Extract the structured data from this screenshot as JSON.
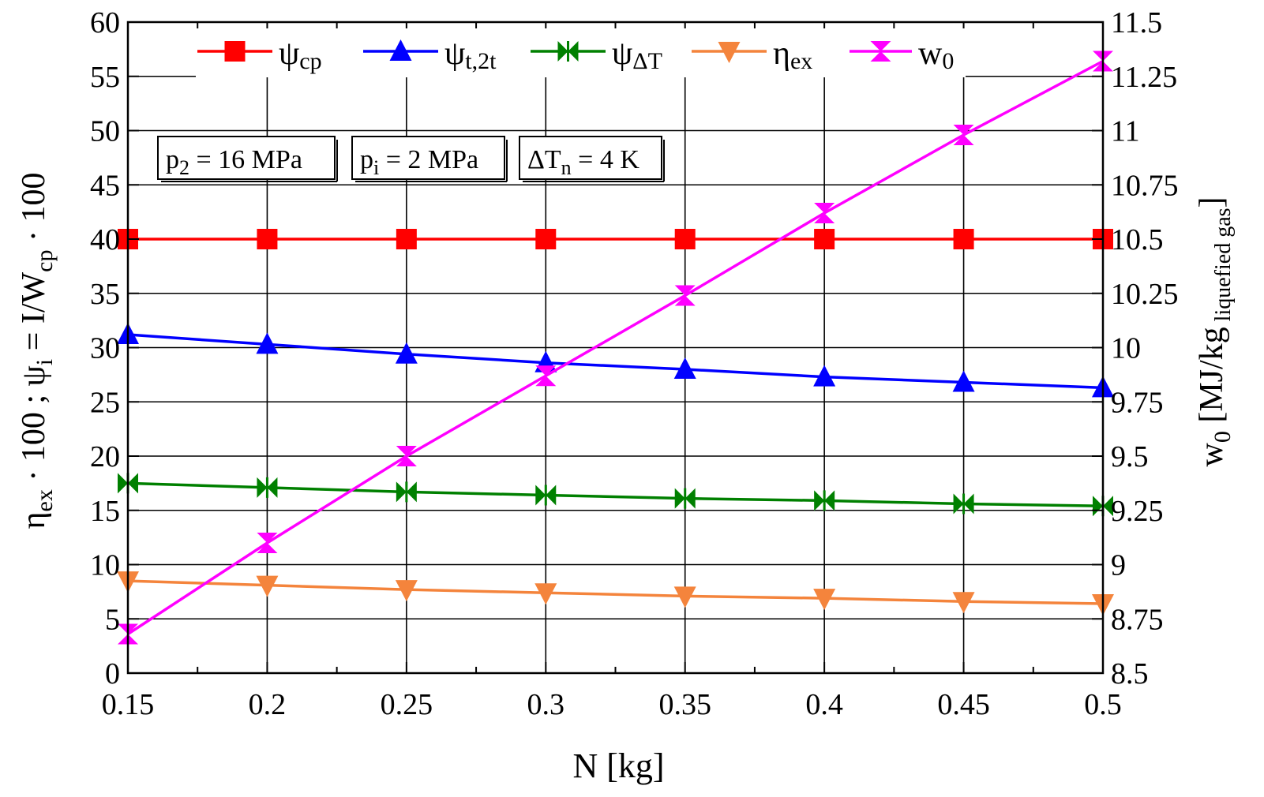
{
  "chart_data": {
    "type": "line",
    "x": [
      0.15,
      0.2,
      0.25,
      0.3,
      0.35,
      0.4,
      0.45,
      0.5
    ],
    "xlim": [
      0.15,
      0.5
    ],
    "ylim_left": [
      0,
      60
    ],
    "ylim_right": [
      8.5,
      11.5
    ],
    "xticks": [
      "0.15",
      "0.2",
      "0.25",
      "0.3",
      "0.35",
      "0.4",
      "0.45",
      "0.5"
    ],
    "yticks_left": [
      "0",
      "5",
      "10",
      "15",
      "20",
      "25",
      "30",
      "35",
      "40",
      "45",
      "50",
      "55",
      "60"
    ],
    "yticks_right": [
      "8.5",
      "8.75",
      "9",
      "9.25",
      "9.5",
      "9.75",
      "10",
      "10.25",
      "10.5",
      "10.75",
      "11",
      "11.25",
      "11.5"
    ],
    "xlabel": {
      "main": "N",
      "unit": "[kg]"
    },
    "ylabel_left": {
      "eta": "η",
      "eta_sub": "ex",
      "times100": "· 100 ;",
      "psi": "ψ",
      "psi_sub": "i",
      "eq": "= I/W",
      "w_sub": "cp",
      "times100_end": "· 100"
    },
    "ylabel_right": {
      "w": "w",
      "w_sub": "0",
      "bracket_open": "[MJ/kg",
      "kg_sub": "liquefied gas",
      "bracket_close": "]"
    },
    "grid": true,
    "legend_position": "top",
    "series": [
      {
        "name": "ψcp",
        "label_main": "ψ",
        "label_sub": "cp",
        "axis": "left",
        "color": "#ff0000",
        "marker": "square",
        "values": [
          40,
          40,
          40,
          40,
          40,
          40,
          40,
          40
        ]
      },
      {
        "name": "ψt,2t",
        "label_main": "ψ",
        "label_sub": "t,2t",
        "axis": "left",
        "color": "#0000ff",
        "marker": "triangle-up",
        "values": [
          31.2,
          30.3,
          29.4,
          28.6,
          28.0,
          27.3,
          26.8,
          26.3
        ]
      },
      {
        "name": "ψΔT",
        "label_main": "ψ",
        "label_sub": "ΔT",
        "axis": "left",
        "color": "#008000",
        "marker": "bowtie",
        "values": [
          17.5,
          17.1,
          16.7,
          16.4,
          16.1,
          15.9,
          15.6,
          15.4
        ]
      },
      {
        "name": "ηex",
        "label_main": "η",
        "label_sub": "ex",
        "axis": "left",
        "color": "#f4843c",
        "marker": "triangle-down",
        "values": [
          8.5,
          8.1,
          7.7,
          7.4,
          7.1,
          6.9,
          6.6,
          6.4
        ]
      },
      {
        "name": "w0",
        "label_main": "w",
        "label_sub": "0",
        "axis": "right",
        "color": "#ff00ff",
        "marker": "hourglass",
        "values": [
          8.68,
          9.1,
          9.5,
          9.87,
          10.24,
          10.62,
          10.98,
          11.32
        ]
      }
    ],
    "annotations": [
      {
        "main": "p",
        "sub": "2",
        "rest": " = 16 MPa"
      },
      {
        "main": "p",
        "sub": "i",
        "rest": " = 2 MPa"
      },
      {
        "main": "ΔT",
        "sub": "n",
        "rest": " = 4 K"
      }
    ]
  }
}
